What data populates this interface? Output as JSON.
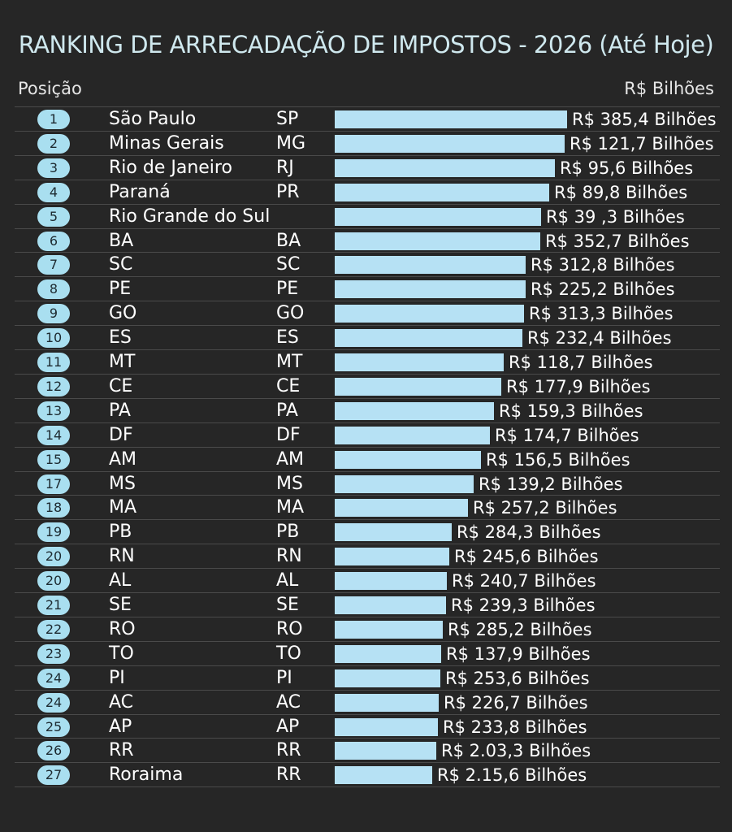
{
  "header": {
    "title": "RANKING DE ARRECADAÇÃO DE IMPOSTOS - 2026 (Até Hoje)",
    "col_left": "Posição",
    "col_right": "R$ Bilhões"
  },
  "colors": {
    "background": "#262626",
    "bar": "#b6e1f4",
    "badge": "#a9dff0",
    "title": "#cfe8ee"
  },
  "chart_data": {
    "type": "bar",
    "orientation": "horizontal",
    "title": "RANKING DE ARRECADAÇÃO DE IMPOSTOS - 2026 (Até Hoje)",
    "xlabel": "R$ Bilhões",
    "ylabel": "Posição",
    "grid": false,
    "rows": [
      {
        "pos": "1",
        "name": "São Paulo",
        "uf": "SP",
        "label": "R$ 385,4 Bilhões",
        "bar": 100
      },
      {
        "pos": "2",
        "name": "Minas Gerais",
        "uf": "MG",
        "label": "R$ 121,7 Bilhões",
        "bar": 98.9
      },
      {
        "pos": "3",
        "name": "Rio de Janeiro",
        "uf": "RJ",
        "label": "R$ 95,6 Bilhões",
        "bar": 94.7
      },
      {
        "pos": "4",
        "name": "Paraná",
        "uf": "PR",
        "label": "R$ 89,8 Bilhões",
        "bar": 92.2
      },
      {
        "pos": "5",
        "name": "Rio Grande do Sul",
        "uf": "",
        "label": "R$ 39 ,3 Bilhões",
        "bar": 88.7
      },
      {
        "pos": "6",
        "name": "BA",
        "uf": "BA",
        "label": "R$ 352,7 Bilhões",
        "bar": 88.3
      },
      {
        "pos": "7",
        "name": "SC",
        "uf": "SC",
        "label": "R$ 312,8 Bilhões",
        "bar": 82.3
      },
      {
        "pos": "8",
        "name": "PE",
        "uf": "PE",
        "label": "R$ 225,2 Bilhões",
        "bar": 82.3
      },
      {
        "pos": "9",
        "name": "GO",
        "uf": "GO",
        "label": "R$ 313,3 Bilhões",
        "bar": 81.6
      },
      {
        "pos": "10",
        "name": "ES",
        "uf": "ES",
        "label": "R$ 232,4 Bilhões",
        "bar": 80.9
      },
      {
        "pos": "11",
        "name": "MT",
        "uf": "MT",
        "label": "R$ 118,7 Bilhões",
        "bar": 72.7
      },
      {
        "pos": "12",
        "name": "CE",
        "uf": "CE",
        "label": "R$ 177,9 Bilhões",
        "bar": 71.6
      },
      {
        "pos": "13",
        "name": "PA",
        "uf": "PA",
        "label": "R$ 159,3 Bilhões",
        "bar": 68.4
      },
      {
        "pos": "14",
        "name": "DF",
        "uf": "DF",
        "label": "R$ 174,7 Bilhões",
        "bar": 66.7
      },
      {
        "pos": "15",
        "name": "AM",
        "uf": "AM",
        "label": "R$ 156,5 Bilhões",
        "bar": 62.8
      },
      {
        "pos": "17",
        "name": "MS",
        "uf": "MS",
        "label": "R$ 139,2 Bilhões",
        "bar": 59.9
      },
      {
        "pos": "18",
        "name": "MA",
        "uf": "MA",
        "label": "R$ 257,2 Bilhões",
        "bar": 57.4
      },
      {
        "pos": "19",
        "name": "PB",
        "uf": "PB",
        "label": "R$ 284,3 Bilhões",
        "bar": 50.4
      },
      {
        "pos": "20",
        "name": "RN",
        "uf": "RN",
        "label": "R$ 245,6 Bilhões",
        "bar": 49.3
      },
      {
        "pos": "20",
        "name": "AL",
        "uf": "AL",
        "label": "R$ 240,7 Bilhões",
        "bar": 48.2
      },
      {
        "pos": "21",
        "name": "SE",
        "uf": "SE",
        "label": "R$ 239,3 Bilhões",
        "bar": 47.9
      },
      {
        "pos": "22",
        "name": "RO",
        "uf": "RO",
        "label": "R$ 285,2 Bilhões",
        "bar": 46.5
      },
      {
        "pos": "23",
        "name": "TO",
        "uf": "TO",
        "label": "R$ 137,9 Bilhões",
        "bar": 45.7
      },
      {
        "pos": "24",
        "name": "PI",
        "uf": "PI",
        "label": "R$ 253,6 Bilhões",
        "bar": 45.4
      },
      {
        "pos": "24",
        "name": "AC",
        "uf": "AC",
        "label": "R$ 226,7 Bilhões",
        "bar": 44.7
      },
      {
        "pos": "25",
        "name": "AP",
        "uf": "AP",
        "label": "R$ 233,8 Bilhões",
        "bar": 44.3
      },
      {
        "pos": "26",
        "name": "RR",
        "uf": "RR",
        "label": "R$ 2.03,3 Bilhões",
        "bar": 43.6
      },
      {
        "pos": "27",
        "name": "Roraima",
        "uf": "RR",
        "label": "R$ 2.15,6 Bilhões",
        "bar": 41.8
      }
    ]
  }
}
